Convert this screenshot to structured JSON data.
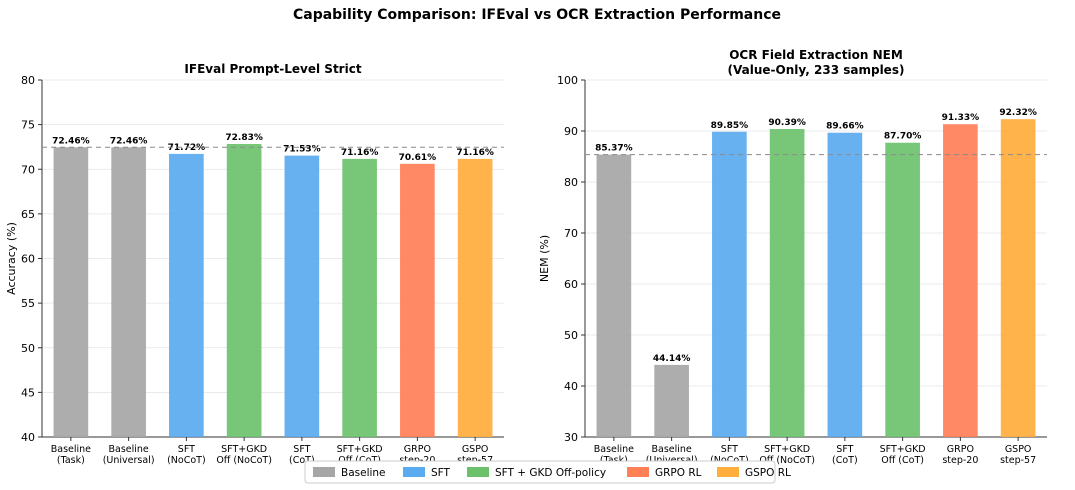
{
  "figure": {
    "title": "Capability Comparison: IFEval vs OCR Extraction Performance"
  },
  "legend": {
    "placement": "bottom-center",
    "entries": [
      {
        "label": "Baseline",
        "color": "#a6a6a6"
      },
      {
        "label": "SFT",
        "color": "#5aaaf0"
      },
      {
        "label": "SFT + GKD Off-policy",
        "color": "#6cc26c"
      },
      {
        "label": "GRPO RL",
        "color": "#ff7f57"
      },
      {
        "label": "GSPO RL",
        "color": "#ffad3b"
      }
    ]
  },
  "chart_data": [
    {
      "type": "bar",
      "title": "IFEval Prompt-Level Strict",
      "xlabel": "",
      "ylabel": "Accuracy (%)",
      "ylim": [
        40,
        80
      ],
      "yticks": [
        40,
        45,
        50,
        55,
        60,
        65,
        70,
        75,
        80
      ],
      "grid": "horizontal",
      "baseline_reference": 72.46,
      "categories": [
        [
          "Baseline",
          "(Task)"
        ],
        [
          "Baseline",
          "(Universal)"
        ],
        [
          "SFT",
          "(NoCoT)"
        ],
        [
          "SFT+GKD",
          "Off (NoCoT)"
        ],
        [
          "SFT",
          "(CoT)"
        ],
        [
          "SFT+GKD",
          "Off (CoT)"
        ],
        [
          "GRPO",
          "step-20"
        ],
        [
          "GSPO",
          "step-57"
        ]
      ],
      "values": [
        72.46,
        72.46,
        71.72,
        72.83,
        71.53,
        71.16,
        70.61,
        71.16
      ],
      "value_labels": [
        "72.46%",
        "72.46%",
        "71.72%",
        "72.83%",
        "71.53%",
        "71.16%",
        "70.61%",
        "71.16%"
      ],
      "groups": [
        "Baseline",
        "Baseline",
        "SFT",
        "SFT + GKD Off-policy",
        "SFT",
        "SFT + GKD Off-policy",
        "GRPO RL",
        "GSPO RL"
      ]
    },
    {
      "type": "bar",
      "title": "OCR Field Extraction NEM",
      "subtitle": "(Value-Only, 233 samples)",
      "xlabel": "",
      "ylabel": "NEM (%)",
      "ylim": [
        30,
        100
      ],
      "yticks": [
        30,
        40,
        50,
        60,
        70,
        80,
        90,
        100
      ],
      "grid": "horizontal",
      "baseline_reference": 85.37,
      "categories": [
        [
          "Baseline",
          "(Task)"
        ],
        [
          "Baseline",
          "(Universal)"
        ],
        [
          "SFT",
          "(NoCoT)"
        ],
        [
          "SFT+GKD",
          "Off (NoCoT)"
        ],
        [
          "SFT",
          "(CoT)"
        ],
        [
          "SFT+GKD",
          "Off (CoT)"
        ],
        [
          "GRPO",
          "step-20"
        ],
        [
          "GSPO",
          "step-57"
        ]
      ],
      "values": [
        85.37,
        44.14,
        89.85,
        90.39,
        89.66,
        87.7,
        91.33,
        92.32
      ],
      "value_labels": [
        "85.37%",
        "44.14%",
        "89.85%",
        "90.39%",
        "89.66%",
        "87.70%",
        "91.33%",
        "92.32%"
      ],
      "groups": [
        "Baseline",
        "Baseline",
        "SFT",
        "SFT + GKD Off-policy",
        "SFT",
        "SFT + GKD Off-policy",
        "GRPO RL",
        "GSPO RL"
      ]
    }
  ]
}
